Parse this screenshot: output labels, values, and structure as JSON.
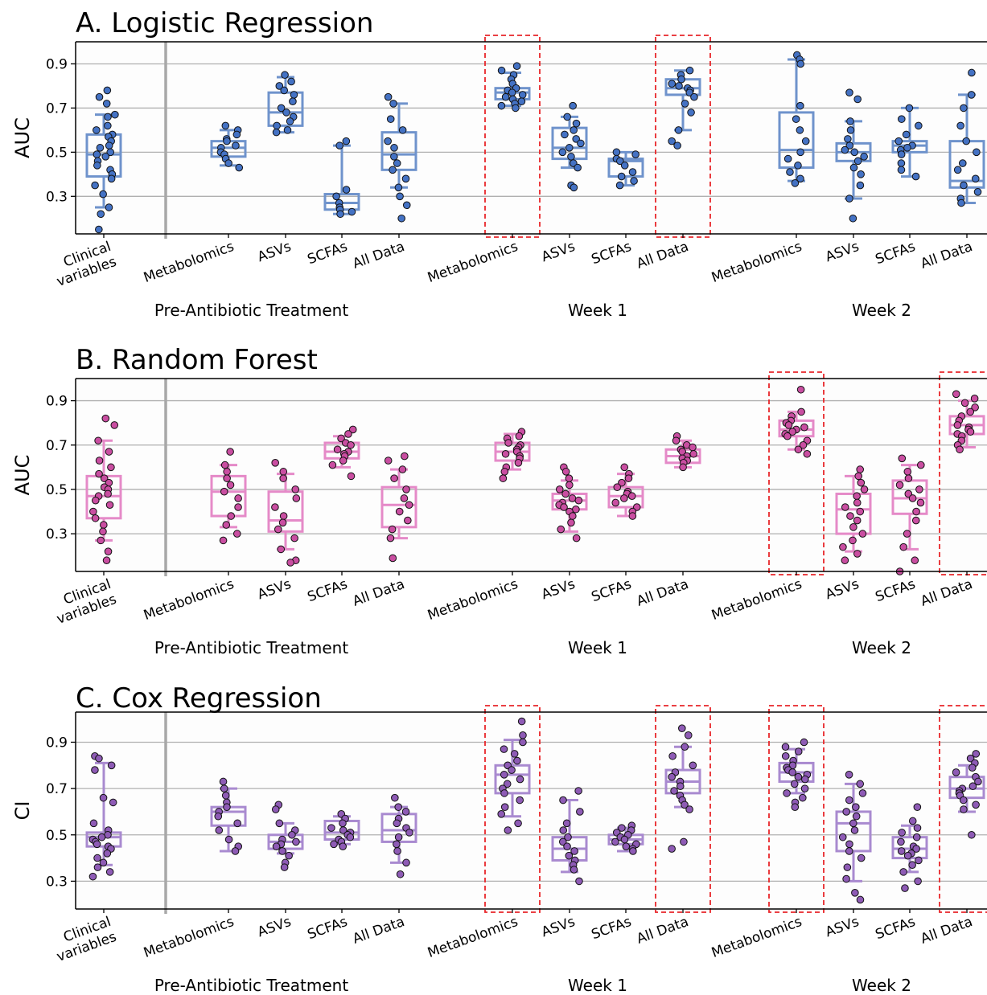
{
  "chart_data": [
    {
      "type": "box",
      "title": "A. Logistic Regression",
      "ylabel": "AUC",
      "ylim": [
        0.13,
        1.0
      ],
      "yticks": [
        0.3,
        0.5,
        0.7,
        0.9
      ],
      "grid": true,
      "color": "#6f93cc",
      "point_color": "#4472c4",
      "categories": [
        "Clinical variables",
        "Metabolomics",
        "ASVs",
        "SCFAs",
        "All Data",
        "Metabolomics",
        "ASVs",
        "SCFAs",
        "All Data",
        "Metabolomics",
        "ASVs",
        "SCFAs",
        "All Data"
      ],
      "groups": [
        {
          "label": "Pre-Antibiotic Treatment",
          "count": 5
        },
        {
          "label": "Week 1",
          "count": 4
        },
        {
          "label": "Week 2",
          "count": 4
        }
      ],
      "highlighted": [
        5,
        8
      ],
      "boxes": [
        {
          "min": 0.25,
          "q1": 0.39,
          "median": 0.49,
          "q3": 0.58,
          "max": 0.67
        },
        {
          "min": 0.44,
          "q1": 0.48,
          "median": 0.52,
          "q3": 0.55,
          "max": 0.6
        },
        {
          "min": 0.59,
          "q1": 0.62,
          "median": 0.68,
          "q3": 0.77,
          "max": 0.84
        },
        {
          "min": 0.22,
          "q1": 0.24,
          "median": 0.27,
          "q3": 0.31,
          "max": 0.53
        },
        {
          "min": 0.34,
          "q1": 0.42,
          "median": 0.49,
          "q3": 0.59,
          "max": 0.72
        },
        {
          "min": 0.71,
          "q1": 0.74,
          "median": 0.77,
          "q3": 0.79,
          "max": 0.86
        },
        {
          "min": 0.43,
          "q1": 0.47,
          "median": 0.52,
          "q3": 0.61,
          "max": 0.66
        },
        {
          "min": 0.35,
          "q1": 0.39,
          "median": 0.46,
          "q3": 0.47,
          "max": 0.5
        },
        {
          "min": 0.6,
          "q1": 0.76,
          "median": 0.79,
          "q3": 0.83,
          "max": 0.87
        },
        {
          "min": 0.37,
          "q1": 0.43,
          "median": 0.51,
          "q3": 0.68,
          "max": 0.92
        },
        {
          "min": 0.29,
          "q1": 0.46,
          "median": 0.5,
          "q3": 0.54,
          "max": 0.64
        },
        {
          "min": 0.39,
          "q1": 0.5,
          "median": 0.53,
          "q3": 0.55,
          "max": 0.7
        },
        {
          "min": 0.27,
          "q1": 0.34,
          "median": 0.37,
          "q3": 0.55,
          "max": 0.76
        }
      ],
      "points": [
        [
          0.78,
          0.75,
          0.72,
          0.67,
          0.66,
          0.62,
          0.6,
          0.58,
          0.57,
          0.55,
          0.53,
          0.52,
          0.5,
          0.49,
          0.48,
          0.46,
          0.44,
          0.42,
          0.4,
          0.38,
          0.35,
          0.31,
          0.25,
          0.22,
          0.15
        ],
        [
          0.62,
          0.6,
          0.58,
          0.56,
          0.55,
          0.53,
          0.52,
          0.5,
          0.49,
          0.47,
          0.45,
          0.43
        ],
        [
          0.85,
          0.82,
          0.8,
          0.78,
          0.76,
          0.73,
          0.7,
          0.68,
          0.66,
          0.64,
          0.62,
          0.6,
          0.59
        ],
        [
          0.55,
          0.53,
          0.33,
          0.3,
          0.27,
          0.25,
          0.24,
          0.23,
          0.22
        ],
        [
          0.75,
          0.72,
          0.65,
          0.6,
          0.55,
          0.52,
          0.48,
          0.45,
          0.42,
          0.38,
          0.34,
          0.3,
          0.26,
          0.2
        ],
        [
          0.89,
          0.87,
          0.85,
          0.83,
          0.81,
          0.79,
          0.78,
          0.77,
          0.76,
          0.75,
          0.74,
          0.73,
          0.72,
          0.71,
          0.7
        ],
        [
          0.71,
          0.66,
          0.63,
          0.6,
          0.58,
          0.56,
          0.54,
          0.52,
          0.5,
          0.48,
          0.45,
          0.43,
          0.35,
          0.34
        ],
        [
          0.5,
          0.49,
          0.47,
          0.46,
          0.44,
          0.41,
          0.39,
          0.37,
          0.35
        ],
        [
          0.87,
          0.85,
          0.83,
          0.81,
          0.8,
          0.79,
          0.78,
          0.77,
          0.75,
          0.72,
          0.68,
          0.6,
          0.55,
          0.53
        ],
        [
          0.94,
          0.92,
          0.9,
          0.71,
          0.65,
          0.6,
          0.55,
          0.5,
          0.47,
          0.44,
          0.41,
          0.38,
          0.36
        ],
        [
          0.77,
          0.74,
          0.64,
          0.6,
          0.56,
          0.53,
          0.51,
          0.5,
          0.48,
          0.46,
          0.43,
          0.4,
          0.35,
          0.29,
          0.2
        ],
        [
          0.7,
          0.65,
          0.62,
          0.58,
          0.55,
          0.53,
          0.52,
          0.51,
          0.49,
          0.45,
          0.42,
          0.39
        ],
        [
          0.86,
          0.76,
          0.7,
          0.62,
          0.55,
          0.5,
          0.45,
          0.42,
          0.38,
          0.35,
          0.32,
          0.29,
          0.27
        ]
      ]
    },
    {
      "type": "box",
      "title": "B. Random Forest",
      "ylabel": "AUC",
      "ylim": [
        0.13,
        1.0
      ],
      "yticks": [
        0.3,
        0.5,
        0.7,
        0.9
      ],
      "grid": true,
      "color": "#e58ac8",
      "point_color": "#c94ea1",
      "categories": [
        "Clinical variables",
        "Metabolomics",
        "ASVs",
        "SCFAs",
        "All Data",
        "Metabolomics",
        "ASVs",
        "SCFAs",
        "All Data",
        "Metabolomics",
        "ASVs",
        "SCFAs",
        "All Data"
      ],
      "groups": [
        {
          "label": "Pre-Antibiotic Treatment",
          "count": 5
        },
        {
          "label": "Week 1",
          "count": 4
        },
        {
          "label": "Week 2",
          "count": 4
        }
      ],
      "highlighted": [
        9,
        12
      ],
      "boxes": [
        {
          "min": 0.27,
          "q1": 0.37,
          "median": 0.47,
          "q3": 0.56,
          "max": 0.72
        },
        {
          "min": 0.33,
          "q1": 0.38,
          "median": 0.49,
          "q3": 0.56,
          "max": 0.61
        },
        {
          "min": 0.23,
          "q1": 0.31,
          "median": 0.36,
          "q3": 0.49,
          "max": 0.57
        },
        {
          "min": 0.6,
          "q1": 0.64,
          "median": 0.67,
          "q3": 0.71,
          "max": 0.74
        },
        {
          "min": 0.28,
          "q1": 0.33,
          "median": 0.43,
          "q3": 0.51,
          "max": 0.59
        },
        {
          "min": 0.59,
          "q1": 0.63,
          "median": 0.67,
          "q3": 0.71,
          "max": 0.75
        },
        {
          "min": 0.31,
          "q1": 0.41,
          "median": 0.45,
          "q3": 0.48,
          "max": 0.54
        },
        {
          "min": 0.38,
          "q1": 0.42,
          "median": 0.47,
          "q3": 0.51,
          "max": 0.57
        },
        {
          "min": 0.6,
          "q1": 0.62,
          "median": 0.65,
          "q3": 0.68,
          "max": 0.72
        },
        {
          "min": 0.68,
          "q1": 0.74,
          "median": 0.77,
          "q3": 0.81,
          "max": 0.85
        },
        {
          "min": 0.22,
          "q1": 0.3,
          "median": 0.41,
          "q3": 0.48,
          "max": 0.56
        },
        {
          "min": 0.23,
          "q1": 0.39,
          "median": 0.46,
          "q3": 0.54,
          "max": 0.61
        },
        {
          "min": 0.69,
          "q1": 0.75,
          "median": 0.79,
          "q3": 0.83,
          "max": 0.9
        }
      ],
      "points": [
        [
          0.82,
          0.79,
          0.72,
          0.67,
          0.63,
          0.6,
          0.57,
          0.55,
          0.53,
          0.51,
          0.5,
          0.48,
          0.47,
          0.45,
          0.43,
          0.4,
          0.37,
          0.34,
          0.31,
          0.27,
          0.22,
          0.18
        ],
        [
          0.67,
          0.61,
          0.58,
          0.55,
          0.52,
          0.49,
          0.46,
          0.42,
          0.38,
          0.34,
          0.3,
          0.27
        ],
        [
          0.62,
          0.58,
          0.55,
          0.5,
          0.46,
          0.42,
          0.38,
          0.35,
          0.32,
          0.28,
          0.23,
          0.18,
          0.17
        ],
        [
          0.77,
          0.75,
          0.73,
          0.71,
          0.7,
          0.68,
          0.67,
          0.66,
          0.65,
          0.63,
          0.61,
          0.56
        ],
        [
          0.65,
          0.63,
          0.59,
          0.55,
          0.5,
          0.46,
          0.43,
          0.4,
          0.36,
          0.32,
          0.28,
          0.19
        ],
        [
          0.76,
          0.74,
          0.73,
          0.71,
          0.7,
          0.69,
          0.68,
          0.67,
          0.66,
          0.65,
          0.64,
          0.62,
          0.6,
          0.58,
          0.55
        ],
        [
          0.6,
          0.58,
          0.55,
          0.52,
          0.5,
          0.48,
          0.46,
          0.45,
          0.44,
          0.43,
          0.42,
          0.41,
          0.4,
          0.38,
          0.35,
          0.32,
          0.28
        ],
        [
          0.6,
          0.57,
          0.55,
          0.53,
          0.51,
          0.49,
          0.48,
          0.47,
          0.46,
          0.44,
          0.42,
          0.4,
          0.38
        ],
        [
          0.74,
          0.72,
          0.7,
          0.69,
          0.68,
          0.67,
          0.66,
          0.65,
          0.64,
          0.63,
          0.62,
          0.6
        ],
        [
          0.95,
          0.85,
          0.83,
          0.81,
          0.8,
          0.79,
          0.78,
          0.77,
          0.76,
          0.75,
          0.74,
          0.72,
          0.7,
          0.68,
          0.66
        ],
        [
          0.59,
          0.56,
          0.53,
          0.5,
          0.47,
          0.44,
          0.42,
          0.4,
          0.38,
          0.36,
          0.33,
          0.3,
          0.27,
          0.24,
          0.21,
          0.18
        ],
        [
          0.64,
          0.61,
          0.58,
          0.55,
          0.52,
          0.5,
          0.48,
          0.46,
          0.44,
          0.4,
          0.36,
          0.3,
          0.24,
          0.18,
          0.13
        ],
        [
          0.93,
          0.91,
          0.89,
          0.87,
          0.85,
          0.83,
          0.81,
          0.79,
          0.78,
          0.77,
          0.76,
          0.75,
          0.74,
          0.72,
          0.7,
          0.68
        ]
      ]
    },
    {
      "type": "box",
      "title": "C. Cox Regression",
      "ylabel": "CI",
      "ylim": [
        0.18,
        1.03
      ],
      "yticks": [
        0.3,
        0.5,
        0.7,
        0.9
      ],
      "grid": true,
      "color": "#a98ad0",
      "point_color": "#8e5bb5",
      "categories": [
        "Clinical variables",
        "Metabolomics",
        "ASVs",
        "SCFAs",
        "All Data",
        "Metabolomics",
        "ASVs",
        "SCFAs",
        "All Data",
        "Metabolomics",
        "ASVs",
        "SCFAs",
        "All Data"
      ],
      "groups": [
        {
          "label": "Pre-Antibiotic Treatment",
          "count": 5
        },
        {
          "label": "Week 1",
          "count": 4
        },
        {
          "label": "Week 2",
          "count": 4
        }
      ],
      "highlighted": [
        5,
        8,
        9,
        12
      ],
      "boxes": [
        {
          "min": 0.37,
          "q1": 0.45,
          "median": 0.49,
          "q3": 0.51,
          "max": 0.81
        },
        {
          "min": 0.43,
          "q1": 0.54,
          "median": 0.6,
          "q3": 0.62,
          "max": 0.7
        },
        {
          "min": 0.42,
          "q1": 0.44,
          "median": 0.47,
          "q3": 0.5,
          "max": 0.55
        },
        {
          "min": 0.46,
          "q1": 0.48,
          "median": 0.51,
          "q3": 0.56,
          "max": 0.58
        },
        {
          "min": 0.38,
          "q1": 0.47,
          "median": 0.52,
          "q3": 0.59,
          "max": 0.62
        },
        {
          "min": 0.58,
          "q1": 0.68,
          "median": 0.76,
          "q3": 0.8,
          "max": 0.91
        },
        {
          "min": 0.34,
          "q1": 0.39,
          "median": 0.44,
          "q3": 0.49,
          "max": 0.65
        },
        {
          "min": 0.43,
          "q1": 0.46,
          "median": 0.48,
          "q3": 0.5,
          "max": 0.53
        },
        {
          "min": 0.62,
          "q1": 0.68,
          "median": 0.73,
          "q3": 0.78,
          "max": 0.88
        },
        {
          "min": 0.68,
          "q1": 0.73,
          "median": 0.77,
          "q3": 0.81,
          "max": 0.87
        },
        {
          "min": 0.3,
          "q1": 0.43,
          "median": 0.55,
          "q3": 0.6,
          "max": 0.72
        },
        {
          "min": 0.34,
          "q1": 0.4,
          "median": 0.44,
          "q3": 0.49,
          "max": 0.54
        },
        {
          "min": 0.6,
          "q1": 0.66,
          "median": 0.7,
          "q3": 0.75,
          "max": 0.8
        }
      ],
      "points": [
        [
          0.84,
          0.83,
          0.8,
          0.78,
          0.66,
          0.64,
          0.55,
          0.52,
          0.5,
          0.49,
          0.48,
          0.47,
          0.46,
          0.45,
          0.44,
          0.42,
          0.4,
          0.38,
          0.36,
          0.34,
          0.32
        ],
        [
          0.73,
          0.7,
          0.67,
          0.64,
          0.62,
          0.6,
          0.58,
          0.55,
          0.52,
          0.48,
          0.45,
          0.43
        ],
        [
          0.63,
          0.61,
          0.55,
          0.52,
          0.5,
          0.48,
          0.47,
          0.46,
          0.45,
          0.43,
          0.41,
          0.38,
          0.36
        ],
        [
          0.59,
          0.57,
          0.55,
          0.53,
          0.52,
          0.51,
          0.5,
          0.49,
          0.48,
          0.47,
          0.46,
          0.45
        ],
        [
          0.66,
          0.62,
          0.6,
          0.57,
          0.55,
          0.53,
          0.51,
          0.49,
          0.46,
          0.43,
          0.38,
          0.33
        ],
        [
          0.99,
          0.93,
          0.9,
          0.87,
          0.85,
          0.82,
          0.8,
          0.78,
          0.76,
          0.74,
          0.72,
          0.7,
          0.68,
          0.65,
          0.62,
          0.59,
          0.55,
          0.52
        ],
        [
          0.69,
          0.65,
          0.6,
          0.55,
          0.52,
          0.49,
          0.47,
          0.45,
          0.43,
          0.41,
          0.39,
          0.37,
          0.35,
          0.3
        ],
        [
          0.54,
          0.53,
          0.52,
          0.51,
          0.5,
          0.49,
          0.48,
          0.47,
          0.46,
          0.45,
          0.44,
          0.43
        ],
        [
          0.96,
          0.93,
          0.88,
          0.84,
          0.8,
          0.77,
          0.75,
          0.73,
          0.71,
          0.69,
          0.67,
          0.65,
          0.63,
          0.61,
          0.47,
          0.44
        ],
        [
          0.9,
          0.88,
          0.86,
          0.84,
          0.82,
          0.8,
          0.79,
          0.78,
          0.77,
          0.76,
          0.75,
          0.74,
          0.72,
          0.7,
          0.68,
          0.66,
          0.64,
          0.62
        ],
        [
          0.76,
          0.72,
          0.68,
          0.65,
          0.62,
          0.6,
          0.58,
          0.55,
          0.52,
          0.49,
          0.46,
          0.43,
          0.4,
          0.36,
          0.31,
          0.25,
          0.22
        ],
        [
          0.62,
          0.56,
          0.53,
          0.51,
          0.49,
          0.47,
          0.45,
          0.44,
          0.43,
          0.42,
          0.41,
          0.39,
          0.37,
          0.34,
          0.3,
          0.27
        ],
        [
          0.85,
          0.83,
          0.81,
          0.79,
          0.77,
          0.75,
          0.73,
          0.71,
          0.7,
          0.69,
          0.68,
          0.67,
          0.65,
          0.63,
          0.61,
          0.5
        ]
      ]
    }
  ]
}
